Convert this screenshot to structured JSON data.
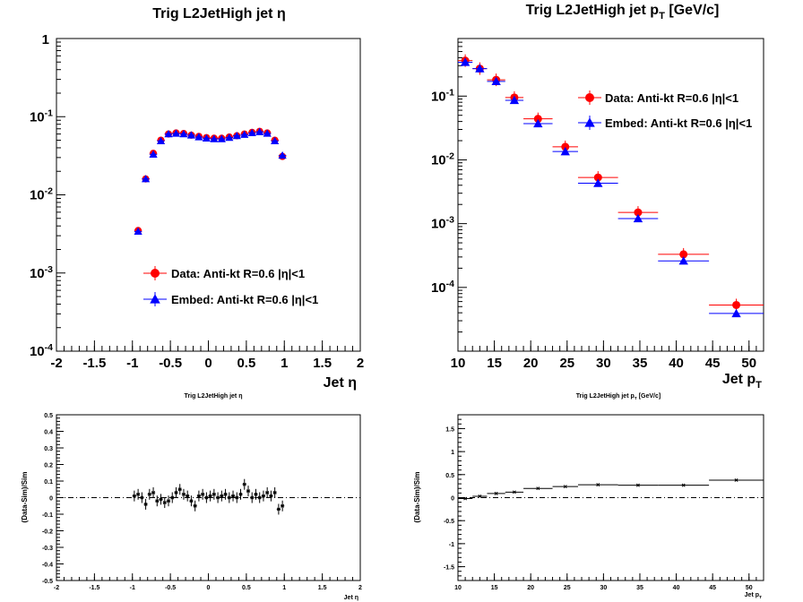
{
  "chart_data": [
    {
      "type": "scatter",
      "title": "Trig L2JetHigh jet  η",
      "xlabel": "Jet  η",
      "ylabel": "",
      "xlim": [
        -2,
        2
      ],
      "ylim": [
        0.0001,
        1
      ],
      "yscale": "log",
      "xticks": [
        "-2",
        "-1.5",
        "-1",
        "-0.5",
        "0",
        "0.5",
        "1",
        "1.5",
        "2"
      ],
      "yticks": [
        {
          "base": "1",
          "exp": ""
        },
        {
          "base": "10",
          "exp": "-1"
        },
        {
          "base": "10",
          "exp": "-2"
        },
        {
          "base": "10",
          "exp": "-3"
        },
        {
          "base": "10",
          "exp": "-4"
        }
      ],
      "x": [
        -0.925,
        -0.825,
        -0.725,
        -0.625,
        -0.525,
        -0.425,
        -0.325,
        -0.225,
        -0.125,
        -0.025,
        0.075,
        0.175,
        0.275,
        0.375,
        0.475,
        0.575,
        0.675,
        0.775,
        0.875,
        0.975
      ],
      "series": [
        {
          "name": "Data: Anti-kt R=0.6 |η|<1",
          "color": "#ff0000",
          "marker": "circle",
          "values": [
            0.0035,
            0.016,
            0.034,
            0.05,
            0.06,
            0.062,
            0.061,
            0.058,
            0.056,
            0.054,
            0.053,
            0.053,
            0.055,
            0.057,
            0.06,
            0.063,
            0.065,
            0.062,
            0.05,
            0.031
          ]
        },
        {
          "name": "Embed: Anti-kt R=0.6 |η|<1",
          "color": "#0000ff",
          "marker": "triangle",
          "values": [
            0.0034,
            0.016,
            0.033,
            0.049,
            0.06,
            0.061,
            0.06,
            0.058,
            0.055,
            0.053,
            0.052,
            0.052,
            0.054,
            0.057,
            0.059,
            0.062,
            0.064,
            0.061,
            0.049,
            0.032
          ]
        }
      ],
      "legend": "center"
    },
    {
      "type": "scatter",
      "title": "Trig L2JetHigh jet p",
      "title_sub": "T",
      "title_suffix": " [GeV/c]",
      "xlabel": "Jet p",
      "xlabel_sub": "T",
      "ylabel": "",
      "xlim": [
        10,
        52
      ],
      "ylim": [
        1e-05,
        0.8
      ],
      "yscale": "log",
      "xticks": [
        "10",
        "15",
        "20",
        "25",
        "30",
        "35",
        "40",
        "45",
        "50"
      ],
      "yticks": [
        {
          "base": "10",
          "exp": "-1"
        },
        {
          "base": "10",
          "exp": "-2"
        },
        {
          "base": "10",
          "exp": "-3"
        },
        {
          "base": "10",
          "exp": "-4"
        }
      ],
      "bins": [
        [
          10,
          12
        ],
        [
          12,
          14
        ],
        [
          14,
          16.5
        ],
        [
          16.5,
          19
        ],
        [
          19,
          23
        ],
        [
          23,
          26.5
        ],
        [
          26.5,
          32
        ],
        [
          32,
          37.5
        ],
        [
          37.5,
          44.5
        ],
        [
          44.5,
          52
        ]
      ],
      "series": [
        {
          "name": "Data: Anti-kt R=0.6 |η|<1",
          "color": "#ff0000",
          "marker": "circle",
          "values": [
            0.36,
            0.27,
            0.18,
            0.095,
            0.044,
            0.016,
            0.0053,
            0.0015,
            0.00033,
            5.3e-05
          ]
        },
        {
          "name": "Embed: Anti-kt R=0.6 |η|<1",
          "color": "#0000ff",
          "marker": "triangle",
          "values": [
            0.34,
            0.27,
            0.17,
            0.086,
            0.037,
            0.0135,
            0.0043,
            0.0012,
            0.00026,
            3.9e-05
          ]
        }
      ],
      "legend": "top-right"
    },
    {
      "type": "scatter",
      "title": "Trig L2JetHigh jet      η",
      "xlabel": "Jet  η",
      "ylabel": "(Data-Sim)/Sim",
      "xlim": [
        -2,
        2
      ],
      "ylim": [
        -0.5,
        0.5
      ],
      "xticks": [
        "-2",
        "-1.5",
        "-1",
        "-0.5",
        "0",
        "0.5",
        "1",
        "1.5",
        "2"
      ],
      "yticks": [
        "0.5",
        "0.4",
        "0.3",
        "0.2",
        "0.1",
        "0",
        "-0.1",
        "-0.2",
        "-0.3",
        "-0.4",
        "-0.5"
      ],
      "x": [
        -0.975,
        -0.925,
        -0.875,
        -0.825,
        -0.775,
        -0.725,
        -0.675,
        -0.625,
        -0.575,
        -0.525,
        -0.475,
        -0.425,
        -0.375,
        -0.325,
        -0.275,
        -0.225,
        -0.175,
        -0.125,
        -0.075,
        -0.025,
        0.025,
        0.075,
        0.125,
        0.175,
        0.225,
        0.275,
        0.325,
        0.375,
        0.425,
        0.475,
        0.525,
        0.575,
        0.625,
        0.675,
        0.725,
        0.775,
        0.825,
        0.875,
        0.925,
        0.975
      ],
      "values": [
        0.01,
        0.02,
        0.0,
        -0.04,
        0.02,
        0.03,
        -0.02,
        -0.01,
        -0.03,
        -0.02,
        0.0,
        0.03,
        0.05,
        0.02,
        0.01,
        -0.02,
        -0.05,
        0.01,
        0.02,
        0.0,
        0.01,
        0.02,
        0.0,
        0.01,
        0.02,
        0.0,
        0.01,
        0.0,
        0.02,
        0.08,
        0.04,
        0.0,
        0.02,
        0.0,
        0.01,
        0.03,
        0.01,
        0.03,
        -0.07,
        -0.05
      ],
      "reference_line": 0
    },
    {
      "type": "scatter",
      "title": "Trig L2JetHigh jet p",
      "title_sub": "T",
      "title_suffix": " [GeV/c]",
      "xlabel": "Jet p",
      "xlabel_sub": "T",
      "ylabel": "(Data-Sim)/Sim",
      "xlim": [
        10,
        52
      ],
      "ylim": [
        -1.8,
        1.8
      ],
      "xticks": [
        "10",
        "15",
        "20",
        "25",
        "30",
        "35",
        "40",
        "45",
        "50"
      ],
      "yticks": [
        "1.5",
        "1",
        "0.5",
        "0",
        "-0.5",
        "-1",
        "-1.5"
      ],
      "bins": [
        [
          10,
          12
        ],
        [
          12,
          14
        ],
        [
          14,
          16.5
        ],
        [
          16.5,
          19
        ],
        [
          19,
          23
        ],
        [
          23,
          26.5
        ],
        [
          26.5,
          32
        ],
        [
          32,
          37.5
        ],
        [
          37.5,
          44.5
        ],
        [
          44.5,
          52
        ]
      ],
      "values": [
        -0.02,
        0.03,
        0.09,
        0.12,
        0.2,
        0.24,
        0.28,
        0.27,
        0.27,
        0.38
      ],
      "reference_line": 0
    }
  ]
}
